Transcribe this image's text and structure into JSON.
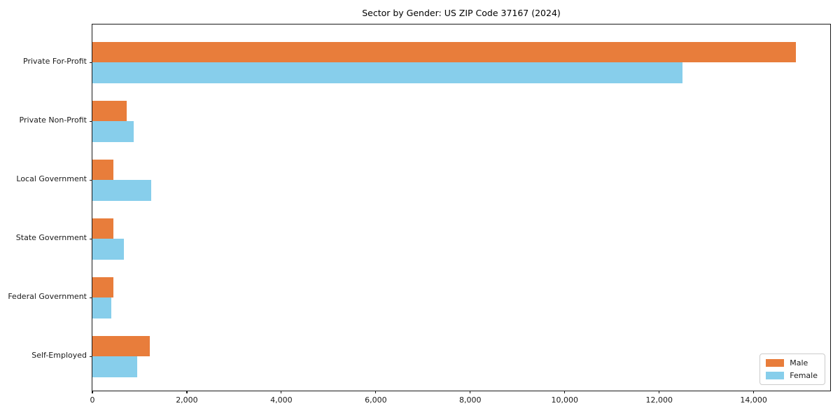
{
  "chart_data": {
    "type": "bar",
    "orientation": "horizontal",
    "title": "Sector by Gender: US ZIP Code 37167 (2024)",
    "categories": [
      "Private For-Profit",
      "Private Non-Profit",
      "Local Government",
      "State Government",
      "Federal Government",
      "Self-Employed"
    ],
    "series": [
      {
        "name": "Male",
        "color": "#E87D3B",
        "values": [
          14900,
          730,
          450,
          440,
          440,
          1210
        ]
      },
      {
        "name": "Female",
        "color": "#87CEEB",
        "values": [
          12500,
          880,
          1250,
          670,
          400,
          950
        ]
      }
    ],
    "xlabel": "",
    "ylabel": "",
    "xlim": [
      0,
      15650
    ],
    "xticks": [
      0,
      2000,
      4000,
      6000,
      8000,
      10000,
      12000,
      14000
    ],
    "grid": false,
    "legend_position": "lower right",
    "axis_color": "#1a1a1a",
    "background_color": "#ffffff"
  }
}
